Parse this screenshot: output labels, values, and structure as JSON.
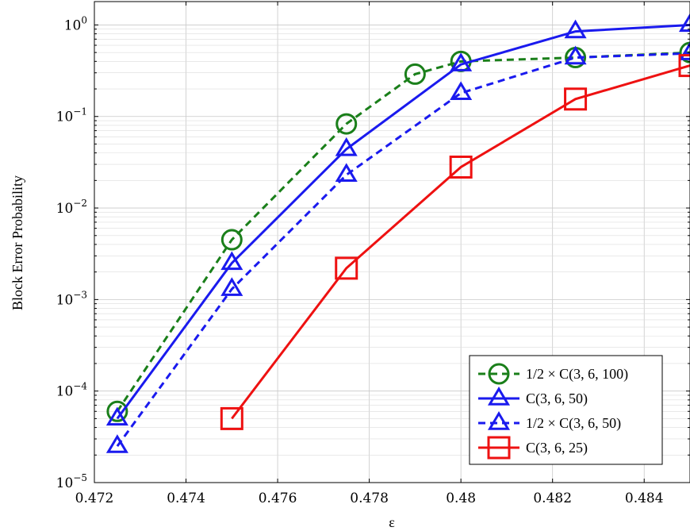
{
  "chart_data": {
    "type": "line",
    "xlabel": "ε",
    "ylabel": "Block Error Probability",
    "xlim": [
      0.472,
      0.485
    ],
    "ylim": [
      1e-05,
      1.8
    ],
    "yscale": "log",
    "grid": true,
    "x_ticks": [
      0.472,
      0.474,
      0.476,
      0.478,
      0.48,
      0.482,
      0.484
    ],
    "x_tick_labels": [
      "0.472",
      "0.474",
      "0.476",
      "0.478",
      "0.48",
      "0.482",
      "0.484"
    ],
    "y_ticks": [
      1e-05,
      0.0001,
      0.001,
      0.01,
      0.1,
      1
    ],
    "y_tick_labels": [
      {
        "base": "10",
        "exp": "−5"
      },
      {
        "base": "10",
        "exp": "−4"
      },
      {
        "base": "10",
        "exp": "−3"
      },
      {
        "base": "10",
        "exp": "−2"
      },
      {
        "base": "10",
        "exp": "−1"
      },
      {
        "base": "10",
        "exp": "0"
      }
    ],
    "legend_position": "bottom-right",
    "series": [
      {
        "name": "1/2 × C(3, 6, 100)",
        "color": "#1a7f1a",
        "dash": "dashed",
        "marker": "circle",
        "x": [
          0.4725,
          0.475,
          0.4775,
          0.479,
          0.48,
          0.4825,
          0.485
        ],
        "y": [
          6e-05,
          0.0045,
          0.083,
          0.29,
          0.4,
          0.44,
          0.5
        ]
      },
      {
        "name": "C(3, 6, 50)",
        "color": "#1a1aee",
        "dash": "solid",
        "marker": "triangle",
        "x": [
          0.4725,
          0.475,
          0.4775,
          0.48,
          0.4825,
          0.485
        ],
        "y": [
          5e-05,
          0.0025,
          0.044,
          0.37,
          0.85,
          1.0
        ]
      },
      {
        "name": "1/2 × C(3, 6, 50)",
        "color": "#1a1aee",
        "dash": "dashed",
        "marker": "triangle",
        "x": [
          0.4725,
          0.475,
          0.4775,
          0.48,
          0.4825,
          0.485
        ],
        "y": [
          2.5e-05,
          0.0013,
          0.023,
          0.18,
          0.44,
          0.49
        ]
      },
      {
        "name": "C(3, 6, 25)",
        "color": "#ee1111",
        "dash": "solid",
        "marker": "square",
        "x": [
          0.475,
          0.4775,
          0.48,
          0.4825,
          0.485
        ],
        "y": [
          5e-05,
          0.0022,
          0.028,
          0.155,
          0.36
        ]
      }
    ]
  }
}
